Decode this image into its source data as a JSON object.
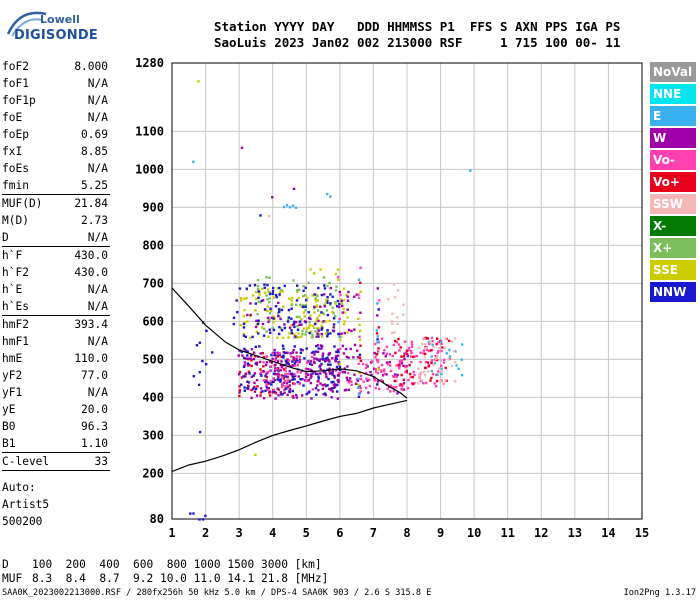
{
  "logo": {
    "line1": "Lowell",
    "line2": "DIGISONDE"
  },
  "header": {
    "line1": "Station YYYY DAY   DDD HHMMSS P1  FFS S AXN PPS IGA PS",
    "line2": "SaoLuis 2023 Jan02 002 213000 RSF     1 715 100 00- 11"
  },
  "params": [
    {
      "key": "foF2",
      "value": "8.000"
    },
    {
      "key": "foF1",
      "value": "N/A"
    },
    {
      "key": "foF1p",
      "value": "N/A"
    },
    {
      "key": "foE",
      "value": "N/A"
    },
    {
      "key": "foEp",
      "value": "0.69"
    },
    {
      "key": "fxI",
      "value": "8.85"
    },
    {
      "key": "foEs",
      "value": "N/A"
    },
    {
      "key": "fmin",
      "value": "5.25",
      "sep": true
    },
    {
      "key": "MUF(D)",
      "value": "21.84"
    },
    {
      "key": "M(D)",
      "value": "2.73"
    },
    {
      "key": "D",
      "value": "N/A",
      "sep": true
    },
    {
      "key": "h`F",
      "value": "430.0"
    },
    {
      "key": "h`F2",
      "value": "430.0"
    },
    {
      "key": "h`E",
      "value": "N/A"
    },
    {
      "key": "h`Es",
      "value": "N/A",
      "sep": true
    },
    {
      "key": "hmF2",
      "value": "393.4"
    },
    {
      "key": "hmF1",
      "value": "N/A"
    },
    {
      "key": "hmE",
      "value": "110.0"
    },
    {
      "key": "yF2",
      "value": "77.0"
    },
    {
      "key": "yF1",
      "value": "N/A"
    },
    {
      "key": "yE",
      "value": "20.0"
    },
    {
      "key": "B0",
      "value": "96.3"
    },
    {
      "key": "B1",
      "value": "1.10",
      "sep": true
    },
    {
      "key": "C-level",
      "value": "33",
      "sep": true
    }
  ],
  "autoscale": [
    "Auto:",
    "Artist5",
    "500200"
  ],
  "legend": [
    {
      "label": "NoVal",
      "color": "#9a9a9a"
    },
    {
      "label": "NNE",
      "color": "#00e5ee"
    },
    {
      "label": "E",
      "color": "#3ab0f0"
    },
    {
      "label": "W",
      "color": "#a000a8"
    },
    {
      "label": "Vo-",
      "color": "#ff40b0"
    },
    {
      "label": "Vo+",
      "color": "#e8001c"
    },
    {
      "label": "SSW",
      "color": "#f5b6b6"
    },
    {
      "label": "X-",
      "color": "#007a00"
    },
    {
      "label": "X+",
      "color": "#7abf5a"
    },
    {
      "label": "SSE",
      "color": "#cccc00"
    },
    {
      "label": "NNW",
      "color": "#1818d0"
    }
  ],
  "footer": {
    "d_key": "D",
    "d_values": "100  200  400  600  800 1000 1500 3000 [km]",
    "muf_key": "MUF",
    "muf_values": "8.3  8.4  8.7  9.2 10.0 11.0 14.1 21.8 [MHz]"
  },
  "status": "SAA0K_2023002213000.RSF / 280fx256h 50 kHz 5.0 km / DPS-4 SAA0K 903 / 2.6 S 315.8 E",
  "version": "Ion2Png 1.3.17",
  "chart_data": {
    "type": "scatter",
    "xlim": [
      1,
      15
    ],
    "ylim": [
      80,
      1280
    ],
    "x_ticks": [
      1,
      2,
      3,
      4,
      5,
      6,
      7,
      8,
      9,
      10,
      11,
      12,
      13,
      14,
      15
    ],
    "y_ticks": [
      80,
      200,
      300,
      400,
      500,
      600,
      700,
      800,
      900,
      1000,
      1100,
      1280
    ],
    "grid": true,
    "legend_position": "right",
    "blobs": [
      {
        "x": [
          2.95,
          4.6
        ],
        "y": [
          405,
          520
        ],
        "color": "#e8001c",
        "density": 0.22
      },
      {
        "x": [
          2.95,
          5.9
        ],
        "y": [
          400,
          530
        ],
        "color": "#a000a8",
        "density": 0.28
      },
      {
        "x": [
          3.0,
          5.9
        ],
        "y": [
          410,
          540
        ],
        "color": "#1818d0",
        "density": 0.22
      },
      {
        "x": [
          3.6,
          5.3
        ],
        "y": [
          420,
          520
        ],
        "color": "#ff40b0",
        "density": 0.18
      },
      {
        "x": [
          5.0,
          8.0
        ],
        "y": [
          410,
          520
        ],
        "color": "#a000a8",
        "density": 0.14
      },
      {
        "x": [
          6.2,
          8.0
        ],
        "y": [
          420,
          500
        ],
        "color": "#ff40b0",
        "density": 0.18
      },
      {
        "x": [
          7.0,
          9.1
        ],
        "y": [
          430,
          560
        ],
        "color": "#ff40b0",
        "density": 0.22
      },
      {
        "x": [
          7.5,
          9.2
        ],
        "y": [
          440,
          560
        ],
        "color": "#e8001c",
        "density": 0.12
      },
      {
        "x": [
          8.6,
          9.6
        ],
        "y": [
          460,
          560
        ],
        "color": "#3ab0f0",
        "density": 0.1
      },
      {
        "x": [
          8.2,
          9.4
        ],
        "y": [
          430,
          560
        ],
        "color": "#f5b6b6",
        "density": 0.12
      },
      {
        "x": [
          3.0,
          5.5
        ],
        "y": [
          560,
          690
        ],
        "color": "#cccc00",
        "density": 0.16
      },
      {
        "x": [
          3.5,
          5.9
        ],
        "y": [
          560,
          720
        ],
        "color": "#7abf5a",
        "density": 0.12
      },
      {
        "x": [
          2.8,
          5.9
        ],
        "y": [
          560,
          700
        ],
        "color": "#1818d0",
        "density": 0.14
      },
      {
        "x": [
          3.2,
          5.4
        ],
        "y": [
          560,
          660
        ],
        "color": "#a000a8",
        "density": 0.12
      },
      {
        "x": [
          5.0,
          6.2
        ],
        "y": [
          560,
          740
        ],
        "color": "#cccc00",
        "density": 0.1
      },
      {
        "x": [
          5.3,
          6.5
        ],
        "y": [
          410,
          700
        ],
        "color": "#a000a8",
        "density": 0.08
      },
      {
        "x": [
          7.4,
          8.1
        ],
        "y": [
          570,
          710
        ],
        "color": "#f5b6b6",
        "density": 0.08
      },
      {
        "x": [
          1.5,
          2.2
        ],
        "y": [
          400,
          620
        ],
        "color": "#1818d0",
        "density": 0.03
      },
      {
        "x": [
          1.5,
          2.0
        ],
        "y": [
          80,
          100
        ],
        "color": "#1818d0",
        "density": 0.25
      }
    ],
    "columns": [
      {
        "x": 6.55,
        "y": [
          400,
          760
        ]
      },
      {
        "x": 5.95,
        "y": [
          420,
          720
        ]
      },
      {
        "x": 7.1,
        "y": [
          420,
          690
        ]
      }
    ],
    "isolated_points": [
      {
        "x": 1.75,
        "y": 1235,
        "color": "#cccc00"
      },
      {
        "x": 1.6,
        "y": 1023,
        "color": "#3ab0f0"
      },
      {
        "x": 3.05,
        "y": 1060,
        "color": "#a000a8"
      },
      {
        "x": 3.95,
        "y": 930,
        "color": "#a000a8"
      },
      {
        "x": 4.6,
        "y": 952,
        "color": "#a000a8"
      },
      {
        "x": 3.6,
        "y": 882,
        "color": "#1818d0"
      },
      {
        "x": 3.85,
        "y": 880,
        "color": "#f5b6b6"
      },
      {
        "x": 9.85,
        "y": 1000,
        "color": "#3ab0f0"
      },
      {
        "x": 3.45,
        "y": 252,
        "color": "#cccc00"
      },
      {
        "x": 1.8,
        "y": 312,
        "color": "#1818d0"
      }
    ],
    "clusters": [
      {
        "x": [
          4.3,
          4.8
        ],
        "y": [
          905,
          912
        ],
        "color": "#3ab0f0"
      },
      {
        "x": [
          5.5,
          5.7
        ],
        "y": [
          935,
          945
        ],
        "color": "#3ab0f0"
      }
    ],
    "lines": [
      {
        "name": "virtual height profile",
        "points": [
          [
            1.0,
            688
          ],
          [
            1.5,
            640
          ],
          [
            2.0,
            590
          ],
          [
            2.6,
            545
          ],
          [
            3.0,
            525
          ],
          [
            3.5,
            510
          ],
          [
            4.0,
            495
          ],
          [
            4.6,
            477
          ],
          [
            5.0,
            468
          ],
          [
            5.5,
            470
          ],
          [
            6.0,
            475
          ],
          [
            6.5,
            470
          ],
          [
            7.0,
            455
          ],
          [
            7.4,
            432
          ],
          [
            7.8,
            412
          ],
          [
            8.0,
            398
          ]
        ]
      },
      {
        "name": "true height profile",
        "points": [
          [
            1.0,
            205
          ],
          [
            1.5,
            222
          ],
          [
            2.0,
            232
          ],
          [
            2.5,
            246
          ],
          [
            3.0,
            262
          ],
          [
            3.5,
            282
          ],
          [
            4.0,
            300
          ],
          [
            4.5,
            313
          ],
          [
            5.0,
            325
          ],
          [
            5.5,
            338
          ],
          [
            6.0,
            350
          ],
          [
            6.5,
            358
          ],
          [
            7.0,
            372
          ],
          [
            7.5,
            382
          ],
          [
            8.0,
            392
          ]
        ]
      }
    ]
  }
}
